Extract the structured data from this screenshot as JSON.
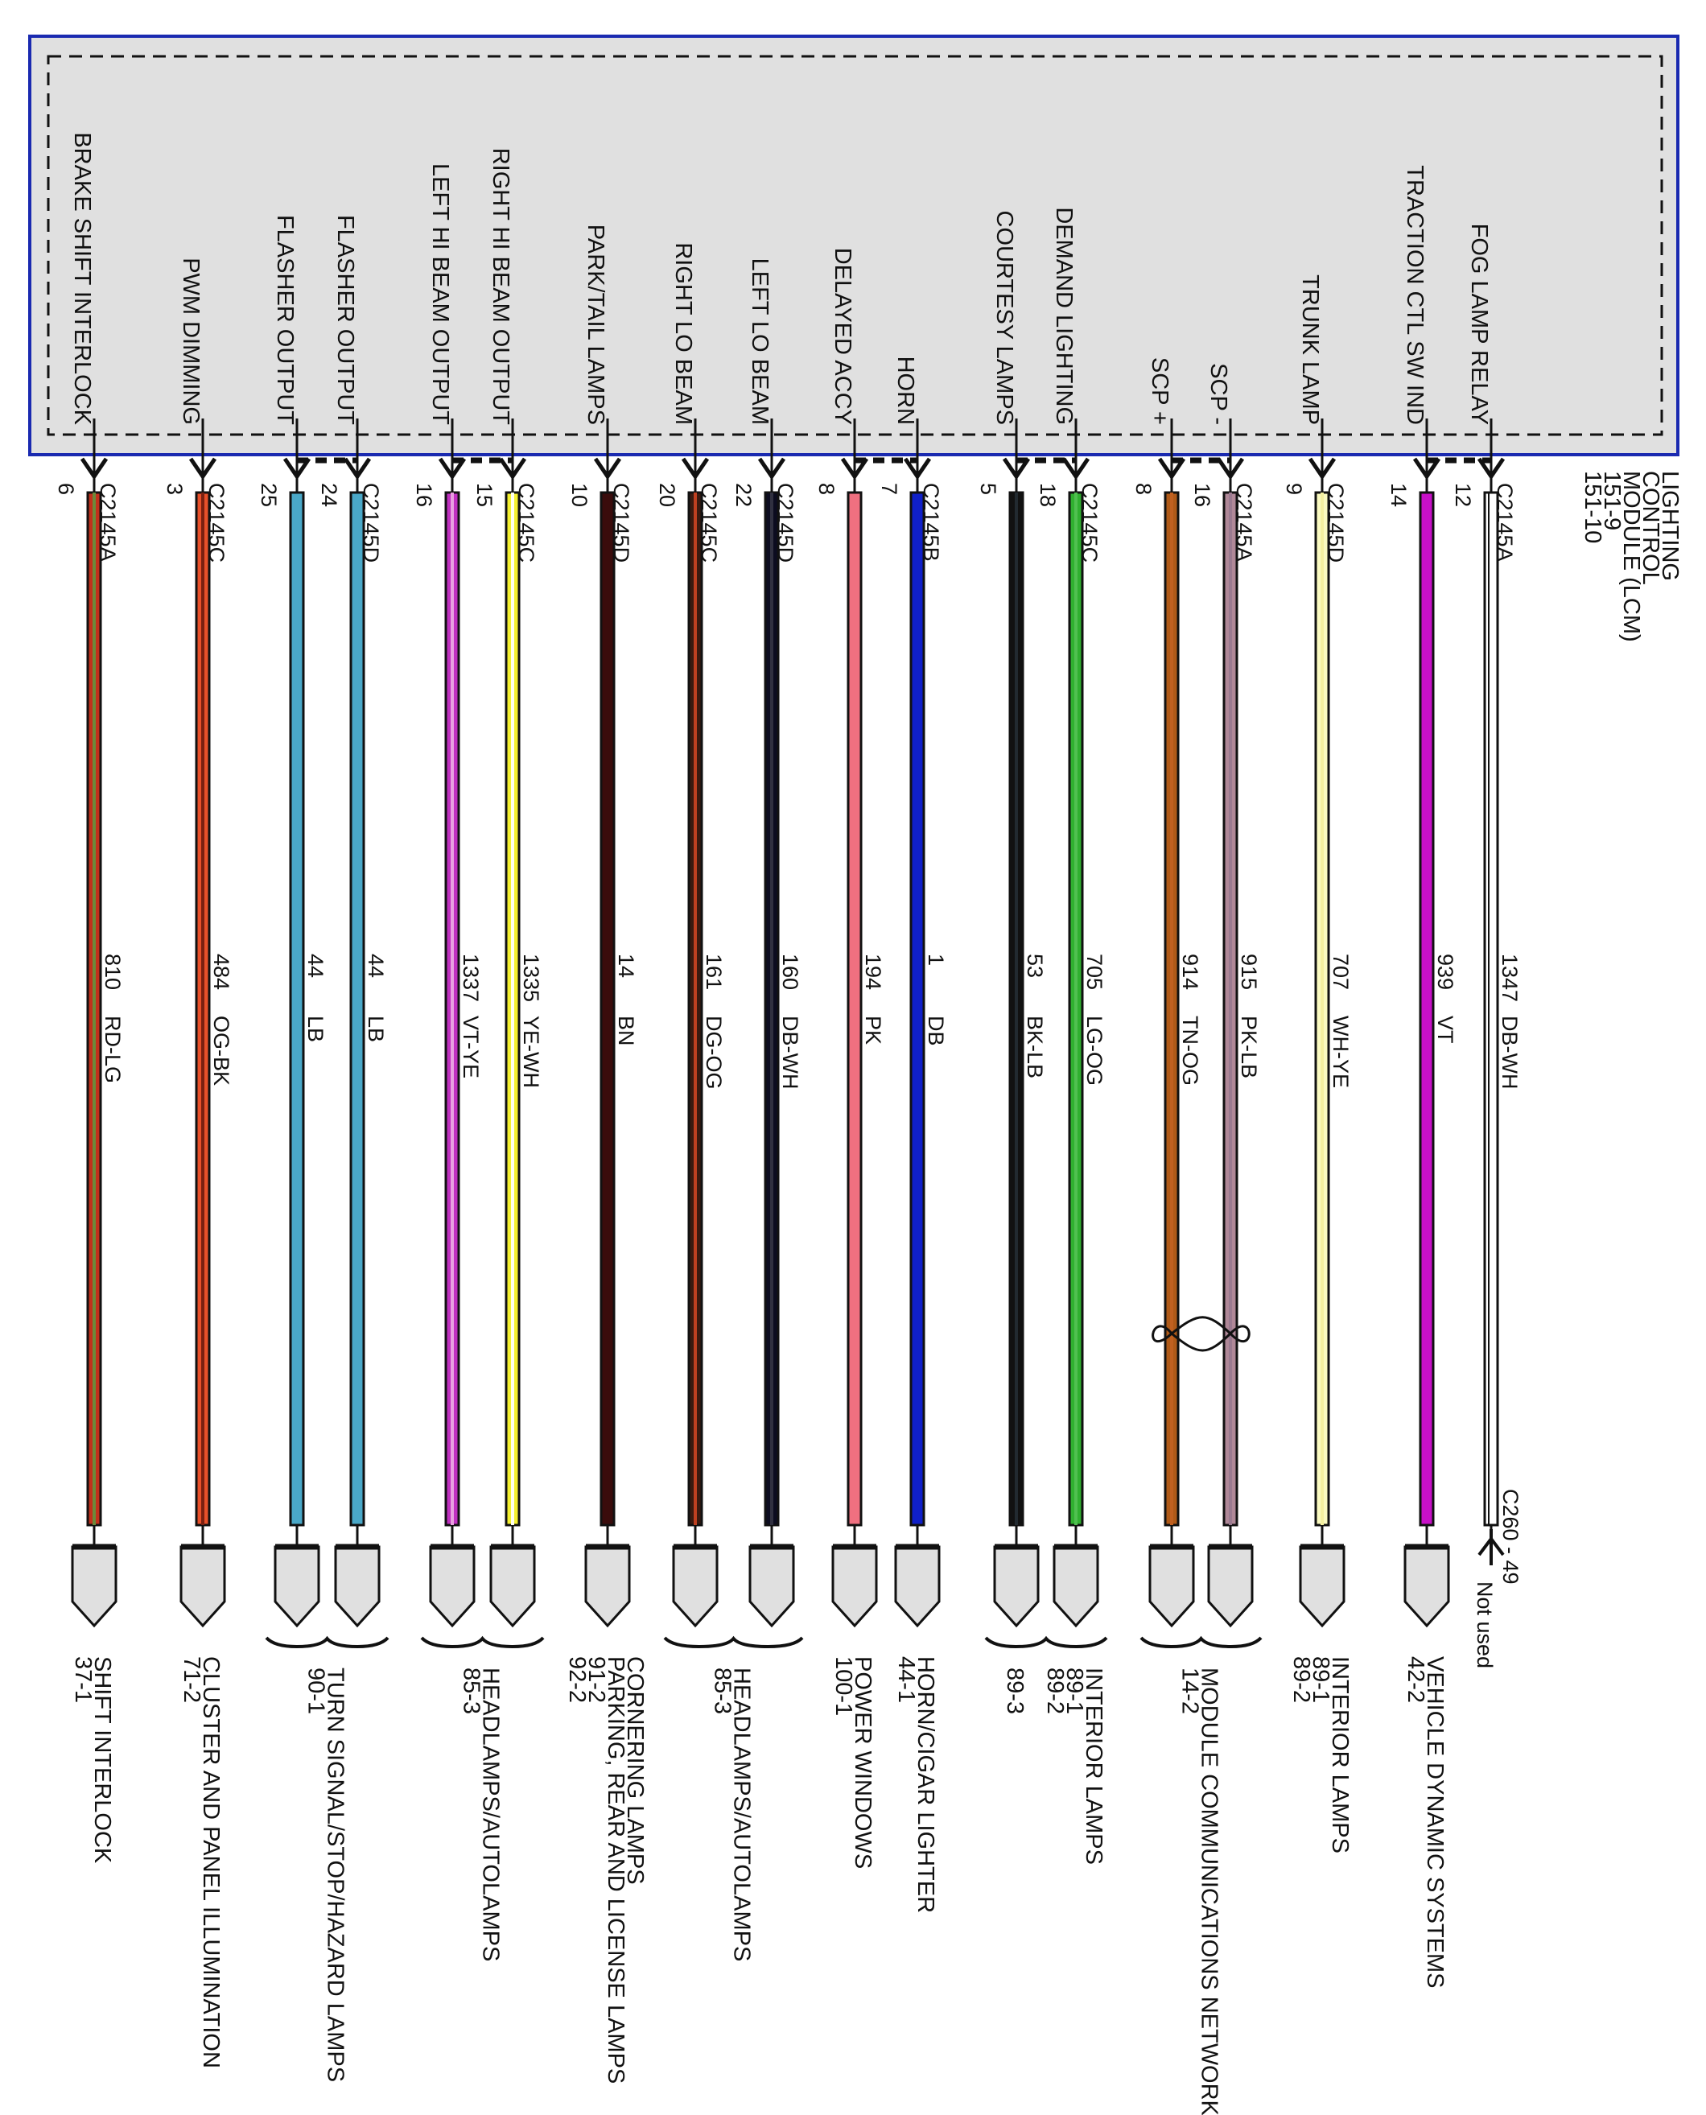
{
  "module": {
    "lines": [
      "LIGHTING",
      "CONTROL",
      "MODULE (LCM)",
      "151-9",
      "151-10"
    ],
    "border_color": "#1a2ab0",
    "fill_color": "#e0e0e0"
  },
  "wires": [
    {
      "function": "BRAKE SHIFT INTERLOCK",
      "pin": "6",
      "connector": "C2145A",
      "circuit": "810",
      "color_code": "RD-LG",
      "base": "#c2301c",
      "stripe": "#6b8a3a"
    },
    {
      "function": "PWM DIMMING",
      "pin": "3",
      "connector": "C2145C",
      "circuit": "484",
      "color_code": "OG-BK",
      "base": "#e8502a",
      "stripe": "#7a2010"
    },
    {
      "function": "FLASHER OUTPUT",
      "pin": "25",
      "connector": "",
      "circuit": "44",
      "color_code": "LB",
      "base": "#4aa8c8",
      "stripe": ""
    },
    {
      "function": "FLASHER OUTPUT",
      "pin": "24",
      "connector": "C2145D",
      "circuit": "44",
      "color_code": "LB",
      "base": "#4aa8c8",
      "stripe": ""
    },
    {
      "function": "LEFT HI BEAM OUTPUT",
      "pin": "16",
      "connector": "",
      "circuit": "1337",
      "color_code": "VT-YE",
      "base": "#c030c0",
      "stripe": "#e8a0e0"
    },
    {
      "function": "RIGHT HI BEAM OUTPUT",
      "pin": "15",
      "connector": "C2145C",
      "circuit": "1335",
      "color_code": "YE-WH",
      "base": "#f4f030",
      "stripe": "#fffff0"
    },
    {
      "function": "PARK/TAIL LAMPS",
      "pin": "10",
      "connector": "C2145D",
      "circuit": "14",
      "color_code": "BN",
      "base": "#3a0c0c",
      "stripe": ""
    },
    {
      "function": "RIGHT LO BEAM",
      "pin": "20",
      "connector": "C2145C",
      "circuit": "161",
      "color_code": "DG-OG",
      "base": "#3a1a10",
      "stripe": "#c04020"
    },
    {
      "function": "LEFT LO BEAM",
      "pin": "22",
      "connector": "C2145D",
      "circuit": "160",
      "color_code": "DB-WH",
      "base": "#0c0c20",
      "stripe": "#303040"
    },
    {
      "function": "DELAYED ACCY",
      "pin": "8",
      "connector": "",
      "circuit": "194",
      "color_code": "PK",
      "base": "#f07080",
      "stripe": ""
    },
    {
      "function": "HORN",
      "pin": "7",
      "connector": "C2145B",
      "circuit": "1",
      "color_code": "DB",
      "base": "#1020c8",
      "stripe": ""
    },
    {
      "function": "COURTESY LAMPS",
      "pin": "5",
      "connector": "",
      "circuit": "53",
      "color_code": "BK-LB",
      "base": "#111111",
      "stripe": "#222a30"
    },
    {
      "function": "DEMAND LIGHTING",
      "pin": "18",
      "connector": "C2145C",
      "circuit": "705",
      "color_code": "LG-OG",
      "base": "#30b030",
      "stripe": "#50c050"
    },
    {
      "function": "SCP +",
      "pin": "8",
      "connector": "",
      "circuit": "914",
      "color_code": "TN-OG",
      "base": "#b05a18",
      "stripe": "#c06020"
    },
    {
      "function": "SCP -",
      "pin": "16",
      "connector": "C2145A",
      "circuit": "915",
      "color_code": "PK-LB",
      "base": "#b08898",
      "stripe": "#9a7a90"
    },
    {
      "function": "TRUNK LAMP",
      "pin": "9",
      "connector": "C2145D",
      "circuit": "707",
      "color_code": "WH-YE",
      "base": "#fafac0",
      "stripe": "#f4f0a0"
    },
    {
      "function": "TRACTION CTL SW IND",
      "pin": "14",
      "connector": "",
      "circuit": "939",
      "color_code": "VT",
      "base": "#c810c8",
      "stripe": ""
    },
    {
      "function": "FOG LAMP RELAY",
      "pin": "12",
      "connector": "C2145A",
      "circuit": "1347",
      "color_code": "DB-WH",
      "base": "#ffffff",
      "stripe": ""
    }
  ],
  "destinations": [
    {
      "wires": [
        0
      ],
      "lines": [
        "SHIFT INTERLOCK",
        "37-1"
      ]
    },
    {
      "wires": [
        1
      ],
      "lines": [
        "CLUSTER AND PANEL ILLUMINATION",
        "71-2"
      ]
    },
    {
      "wires": [
        2,
        3
      ],
      "lines": [
        "TURN SIGNAL/STOP/HAZARD LAMPS",
        "90-1"
      ]
    },
    {
      "wires": [
        4,
        5
      ],
      "lines": [
        "HEADLAMPS/AUTOLAMPS",
        "85-3"
      ]
    },
    {
      "wires": [
        6
      ],
      "lines": [
        "CORNERING LAMPS",
        "PARKING, REAR AND LICENSE LAMPS",
        "91-2",
        "92-2"
      ]
    },
    {
      "wires": [
        7,
        8
      ],
      "lines": [
        "HEADLAMPS/AUTOLAMPS",
        "85-3"
      ]
    },
    {
      "wires": [
        9
      ],
      "lines": [
        "POWER WINDOWS",
        "100-1"
      ]
    },
    {
      "wires": [
        10
      ],
      "lines": [
        "HORN/CIGAR LIGHTER",
        "44-1"
      ]
    },
    {
      "wires": [
        11
      ],
      "lines": [
        "89-3"
      ]
    },
    {
      "wires": [
        12
      ],
      "lines": [
        "INTERIOR LAMPS",
        "89-1",
        "89-2"
      ]
    },
    {
      "wires": [
        13,
        14
      ],
      "lines": [
        "MODULE COMMUNICATIONS NETWORK",
        "14-2"
      ]
    },
    {
      "wires": [
        15
      ],
      "lines": [
        "INTERIOR LAMPS",
        "89-1",
        "89-2"
      ]
    },
    {
      "wires": [
        16
      ],
      "lines": [
        "VEHICLE DYNAMIC SYSTEMS",
        "42-2"
      ]
    }
  ],
  "unused": {
    "connector": "C260 - 49",
    "note": "Not used"
  }
}
